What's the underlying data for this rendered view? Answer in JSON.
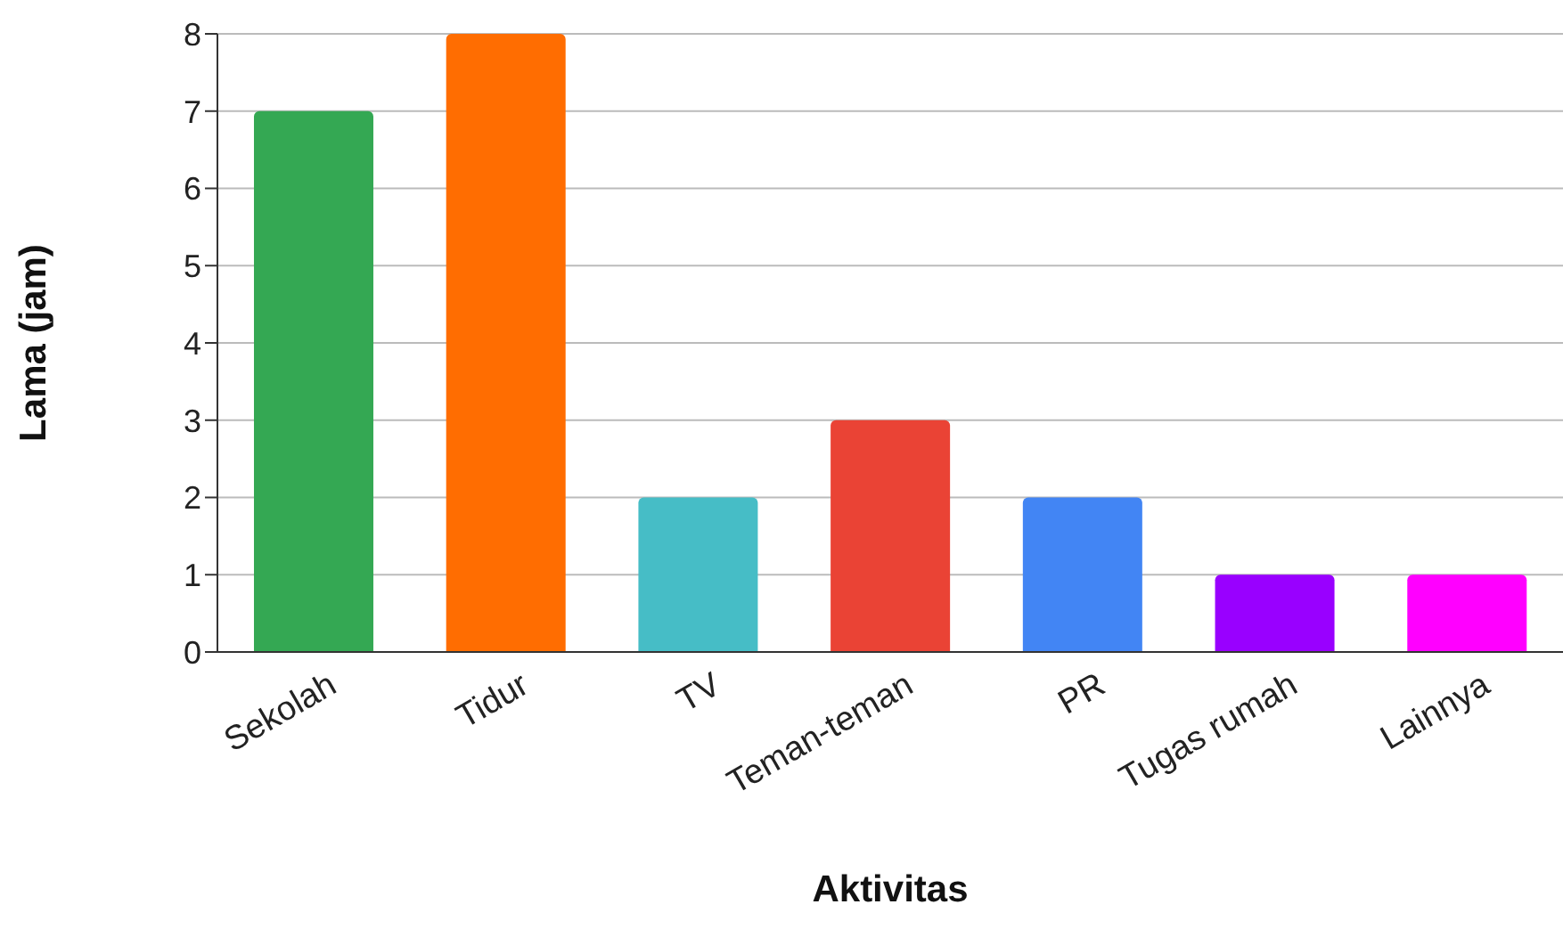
{
  "chart_data": {
    "type": "bar",
    "xlabel": "Aktivitas",
    "ylabel": "Lama (jam)",
    "categories": [
      "Sekolah",
      "Tidur",
      "TV",
      "Teman-teman",
      "PR",
      "Tugas rumah",
      "Lainnya"
    ],
    "values": [
      7,
      8,
      2,
      3,
      2,
      1,
      1
    ],
    "colors": [
      "#34a853",
      "#ff6d01",
      "#46bdc6",
      "#ea4335",
      "#4285f4",
      "#9900ff",
      "#ff00ff"
    ],
    "ylim": [
      0,
      8
    ],
    "yticks": [
      0,
      1,
      2,
      3,
      4,
      5,
      6,
      7,
      8
    ],
    "grid": "y",
    "legend": false
  }
}
